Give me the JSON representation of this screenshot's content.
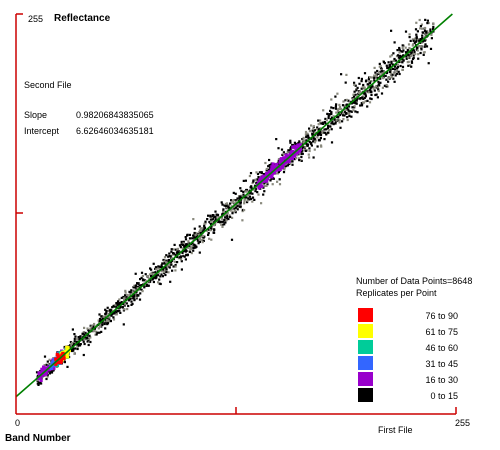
{
  "labels": {
    "y_max": "255",
    "y_title": "Reflectance",
    "y_file": "Second File",
    "x_min": "0",
    "x_max": "255",
    "x_title": "Band Number",
    "x_file": "First File"
  },
  "stats": {
    "slope_label": "Slope",
    "slope_value": "0.98206843835065",
    "intercept_label": "Intercept",
    "intercept_value": "6.62646034635181"
  },
  "legend": {
    "count_text": "Number of Data Points=8648",
    "subtitle": "Replicates per Point",
    "items": [
      {
        "label": "76 to 90",
        "color": "#ff0000"
      },
      {
        "label": "61 to 75",
        "color": "#ffff00"
      },
      {
        "label": "46 to 60",
        "color": "#00cc99"
      },
      {
        "label": "31 to 45",
        "color": "#3366ff"
      },
      {
        "label": "16 to 30",
        "color": "#9900cc"
      },
      {
        "label": "0 to 15",
        "color": "#000000"
      }
    ]
  },
  "colors": {
    "axis": "#cc0000",
    "fit_line": "#008000",
    "scatter_edge": "#000000",
    "scatter_fill": "#8a8a7e"
  },
  "chart_data": {
    "type": "scatter",
    "x_range": [
      0,
      255
    ],
    "y_range": [
      0,
      255
    ],
    "n_points": 8648,
    "regression": {
      "slope": 0.98206843835065,
      "intercept": 6.62646034635181
    },
    "density_bands": [
      {
        "replicates": "16 to 30",
        "color": "#9900cc",
        "x_range": [
          13,
          30
        ]
      },
      {
        "replicates": "31 to 45",
        "color": "#3366ff",
        "x_range": [
          20,
          30
        ]
      },
      {
        "replicates": "46 to 60",
        "color": "#00cc99",
        "x_range": [
          24,
          30
        ]
      },
      {
        "replicates": "61 to 75",
        "color": "#ffff00",
        "x_range": [
          26,
          31
        ]
      },
      {
        "replicates": "76 to 90",
        "color": "#ff0000",
        "x_range": [
          23,
          28
        ]
      },
      {
        "replicates": "16 to 30",
        "color": "#9900cc",
        "x_range": [
          140,
          165
        ]
      }
    ]
  }
}
